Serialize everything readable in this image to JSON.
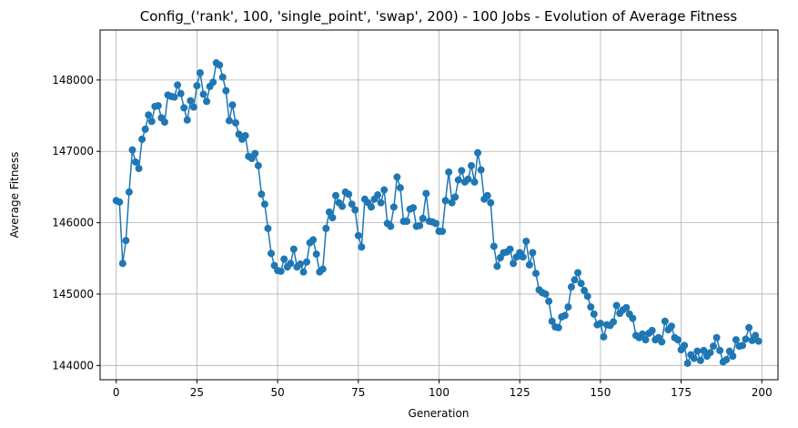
{
  "chart_data": {
    "type": "line",
    "title": "Config_('rank', 100, 'single_point', 'swap', 200) - 100 Jobs - Evolution of Average Fitness",
    "xlabel": "Generation",
    "ylabel": "Average Fitness",
    "x": [
      0,
      1,
      2,
      3,
      4,
      5,
      6,
      7,
      8,
      9,
      10,
      11,
      12,
      13,
      14,
      15,
      16,
      17,
      18,
      19,
      20,
      21,
      22,
      23,
      24,
      25,
      26,
      27,
      28,
      29,
      30,
      31,
      32,
      33,
      34,
      35,
      36,
      37,
      38,
      39,
      40,
      41,
      42,
      43,
      44,
      45,
      46,
      47,
      48,
      49,
      50,
      51,
      52,
      53,
      54,
      55,
      56,
      57,
      58,
      59,
      60,
      61,
      62,
      63,
      64,
      65,
      66,
      67,
      68,
      69,
      70,
      71,
      72,
      73,
      74,
      75,
      76,
      77,
      78,
      79,
      80,
      81,
      82,
      83,
      84,
      85,
      86,
      87,
      88,
      89,
      90,
      91,
      92,
      93,
      94,
      95,
      96,
      97,
      98,
      99,
      100,
      101,
      102,
      103,
      104,
      105,
      106,
      107,
      108,
      109,
      110,
      111,
      112,
      113,
      114,
      115,
      116,
      117,
      118,
      119,
      120,
      121,
      122,
      123,
      124,
      125,
      126,
      127,
      128,
      129,
      130,
      131,
      132,
      133,
      134,
      135,
      136,
      137,
      138,
      139,
      140,
      141,
      142,
      143,
      144,
      145,
      146,
      147,
      148,
      149,
      150,
      151,
      152,
      153,
      154,
      155,
      156,
      157,
      158,
      159,
      160,
      161,
      162,
      163,
      164,
      165,
      166,
      167,
      168,
      169,
      170,
      171,
      172,
      173,
      174,
      175,
      176,
      177,
      178,
      179,
      180,
      181,
      182,
      183,
      184,
      185,
      186,
      187,
      188,
      189,
      190,
      191,
      192,
      193,
      194,
      195,
      196,
      197,
      198,
      199
    ],
    "series": [
      {
        "color": "#1f77b4",
        "values": [
          146310,
          146290,
          145430,
          145750,
          146430,
          147020,
          146850,
          146760,
          147170,
          147310,
          147510,
          147420,
          147630,
          147640,
          147470,
          147410,
          147790,
          147770,
          147760,
          147930,
          147810,
          147610,
          147440,
          147710,
          147620,
          147920,
          148100,
          147800,
          147700,
          147910,
          147970,
          148240,
          148210,
          148040,
          147850,
          147430,
          147650,
          147400,
          147240,
          147170,
          147220,
          146930,
          146900,
          146970,
          146800,
          146400,
          146260,
          145920,
          145570,
          145400,
          145330,
          145320,
          145490,
          145380,
          145430,
          145630,
          145380,
          145420,
          145310,
          145450,
          145720,
          145760,
          145560,
          145310,
          145350,
          145920,
          146150,
          146070,
          146380,
          146280,
          146230,
          146430,
          146400,
          146260,
          146180,
          145820,
          145660,
          146330,
          146280,
          146220,
          146330,
          146390,
          146280,
          146460,
          145990,
          145950,
          146220,
          146640,
          146490,
          146020,
          146020,
          146190,
          146210,
          145950,
          145960,
          146060,
          146410,
          146020,
          146010,
          145990,
          145880,
          145880,
          146310,
          146710,
          146280,
          146360,
          146600,
          146730,
          146570,
          146610,
          146800,
          146570,
          146980,
          146740,
          146330,
          146380,
          146280,
          145670,
          145390,
          145510,
          145580,
          145590,
          145630,
          145430,
          145520,
          145580,
          145520,
          145740,
          145410,
          145580,
          145290,
          145060,
          145020,
          145000,
          144900,
          144620,
          144540,
          144530,
          144680,
          144700,
          144820,
          145100,
          145200,
          145300,
          145150,
          145050,
          144970,
          144820,
          144720,
          144570,
          144590,
          144400,
          144570,
          144560,
          144610,
          144840,
          144730,
          144780,
          144810,
          144720,
          144660,
          144420,
          144390,
          144440,
          144360,
          144450,
          144490,
          144360,
          144390,
          144330,
          144620,
          144500,
          144550,
          144390,
          144360,
          144220,
          144280,
          144030,
          144150,
          144100,
          144200,
          144070,
          144210,
          144130,
          144180,
          144270,
          144390,
          144210,
          144050,
          144080,
          144200,
          144130,
          144360,
          144270,
          144280,
          144370,
          144530,
          144350,
          144420,
          144340
        ]
      }
    ],
    "xlim": [
      -5,
      205
    ],
    "xticks": [
      0,
      25,
      50,
      75,
      100,
      125,
      150,
      175,
      200
    ],
    "ylim": [
      143800,
      148700
    ],
    "yticks": [
      144000,
      145000,
      146000,
      147000,
      148000
    ],
    "grid": true
  }
}
